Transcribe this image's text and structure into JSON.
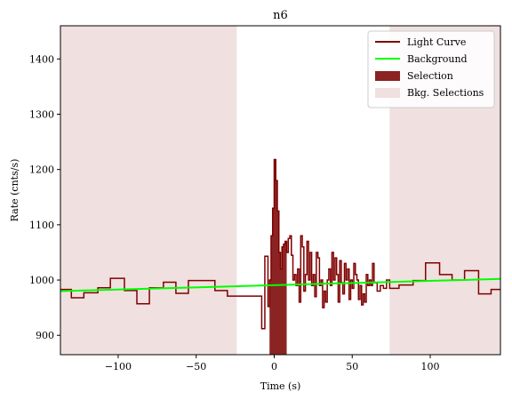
{
  "chart_data": {
    "type": "line",
    "title": "n6",
    "xlabel": "Time (s)",
    "ylabel": "Rate (cnts/s)",
    "xlim": [
      -137,
      145
    ],
    "ylim": [
      865,
      1460
    ],
    "xticks": [
      -100,
      -50,
      0,
      50,
      100
    ],
    "xtick_labels": [
      "−100",
      "−50",
      "0",
      "50",
      "100"
    ],
    "yticks": [
      900,
      1000,
      1100,
      1200,
      1300,
      1400
    ],
    "ytick_labels": [
      "900",
      "1000",
      "1100",
      "1200",
      "1300",
      "1400"
    ],
    "grid": false,
    "legend_position": "top-right",
    "colors": {
      "light_curve": "#7f0000",
      "background": "#00ff00",
      "selection": "#8b2323",
      "bkg_selection": "#f0e0e0"
    },
    "legend": [
      {
        "label": "Light Curve",
        "kind": "line",
        "color": "#7f0000"
      },
      {
        "label": "Background",
        "kind": "line",
        "color": "#00ff00"
      },
      {
        "label": "Selection",
        "kind": "patch",
        "color": "#8b2323"
      },
      {
        "label": "Bkg. Selections",
        "kind": "patch",
        "color": "#f0e0e0"
      }
    ],
    "bkg_selections": [
      [
        -137,
        -24
      ],
      [
        74,
        145
      ]
    ],
    "selection": [
      -3,
      8
    ],
    "background_line": {
      "x": [
        -137,
        145
      ],
      "y": [
        980,
        1002
      ]
    },
    "series": [
      {
        "name": "Light Curve",
        "x": [
          -137,
          -130,
          -122,
          -113,
          -105,
          -96,
          -88,
          -80,
          -71,
          -63,
          -55,
          -47,
          -38,
          -30,
          -24,
          -15,
          -8,
          -6,
          -4,
          -3,
          -2,
          -1,
          0,
          1,
          2,
          3,
          4,
          5,
          6,
          7,
          8,
          9,
          10,
          11,
          12,
          13,
          14,
          15,
          16,
          17,
          18,
          19,
          20,
          21,
          22,
          23,
          24,
          25,
          26,
          27,
          28,
          29,
          30,
          31,
          32,
          33,
          34,
          35,
          36,
          37,
          38,
          39,
          40,
          41,
          42,
          43,
          44,
          45,
          46,
          47,
          48,
          49,
          50,
          51,
          52,
          53,
          54,
          55,
          56,
          57,
          58,
          59,
          60,
          61,
          62,
          63,
          64,
          66,
          68,
          70,
          72,
          74,
          80,
          89,
          97,
          106,
          114,
          122,
          131,
          139,
          145
        ],
        "y": [
          983,
          968,
          977,
          986,
          1003,
          981,
          957,
          986,
          996,
          976,
          999,
          999,
          981,
          971,
          971,
          971,
          912,
          1043,
          952,
          1000,
          1080,
          1130,
          1218,
          1180,
          1125,
          1050,
          1020,
          1060,
          1065,
          1070,
          1050,
          1075,
          1080,
          1045,
          1000,
          1010,
          990,
          1020,
          960,
          1080,
          1060,
          980,
          1010,
          1070,
          1000,
          1050,
          990,
          1010,
          970,
          1050,
          1040,
          990,
          1000,
          950,
          980,
          960,
          1000,
          1020,
          990,
          1050,
          1000,
          1040,
          1010,
          960,
          1035,
          995,
          975,
          1030,
          1000,
          1020,
          965,
          1000,
          985,
          1030,
          1010,
          1000,
          965,
          990,
          955,
          975,
          960,
          1010,
          990,
          1000,
          990,
          1030,
          995,
          980,
          990,
          985,
          1000,
          985,
          991,
          999,
          1031,
          1010,
          1000,
          1017,
          975,
          983,
          983
        ]
      }
    ]
  }
}
